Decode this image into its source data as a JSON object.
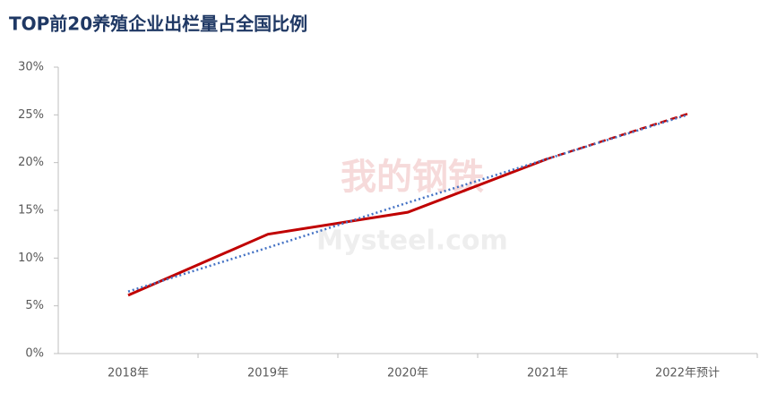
{
  "chart_data": {
    "type": "line",
    "title": "TOP前20养殖企业出栏量占全国比例",
    "watermark": [
      "我的钢铁",
      "Mysteel.com"
    ],
    "categories": [
      "2018年",
      "2019年",
      "2020年",
      "2021年",
      "2022年预计"
    ],
    "series": [
      {
        "color": "#c00000",
        "style": "solid",
        "values": [
          6.1,
          12.5,
          14.8,
          20.4,
          null
        ]
      },
      {
        "color": "#c00000",
        "style": "dashed",
        "values": [
          null,
          null,
          null,
          20.4,
          25.1
        ]
      },
      {
        "color": "#4472c4",
        "style": "dotted",
        "values": [
          6.5,
          11.1,
          15.8,
          20.4,
          25.0
        ]
      }
    ],
    "ylim": [
      0,
      30
    ],
    "yticks": [
      {
        "value": 0,
        "label": "0%"
      },
      {
        "value": 5,
        "label": "5%"
      },
      {
        "value": 10,
        "label": "10%"
      },
      {
        "value": 15,
        "label": "15%"
      },
      {
        "value": 20,
        "label": "20%"
      },
      {
        "value": 25,
        "label": "25%"
      },
      {
        "value": 30,
        "label": "30%"
      }
    ]
  }
}
